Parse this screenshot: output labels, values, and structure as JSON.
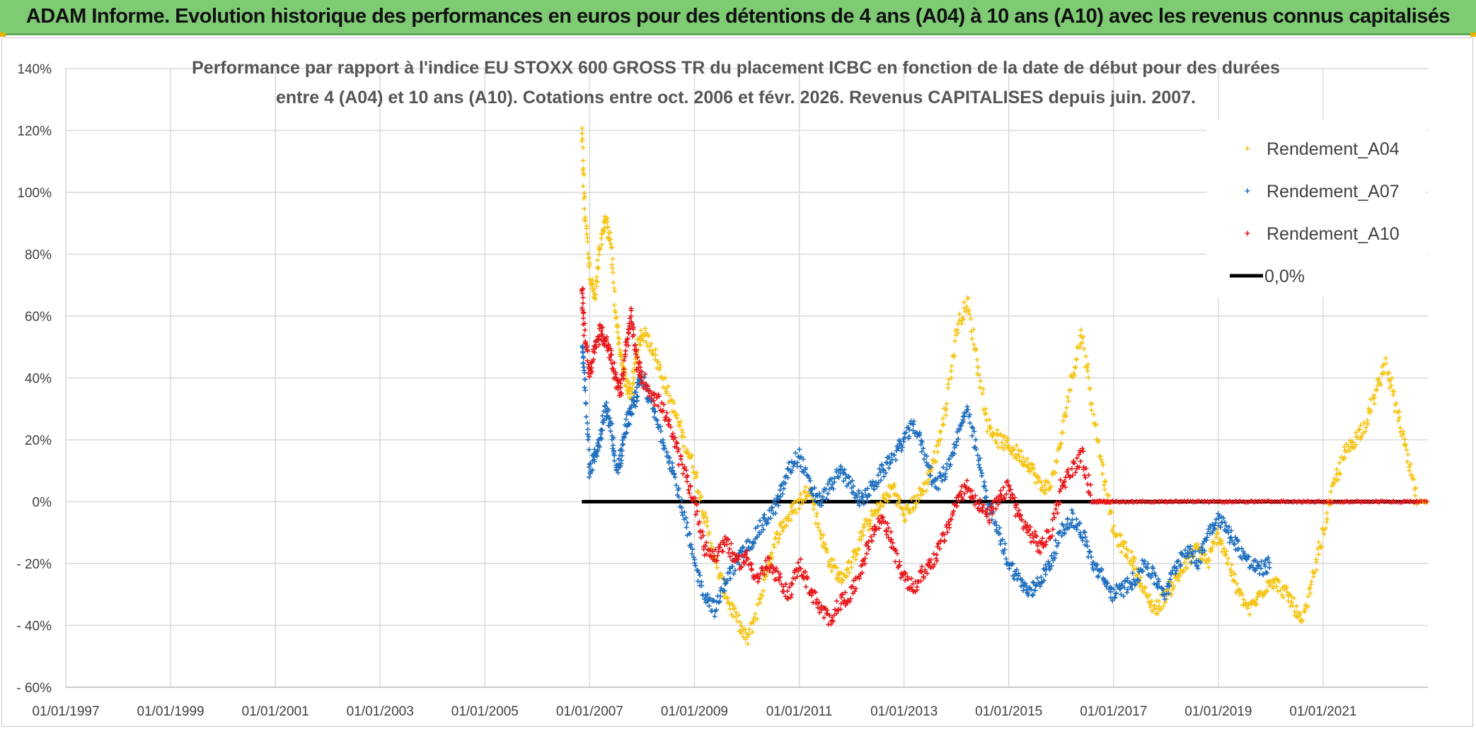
{
  "banner": {
    "title": "ADAM Informe. Evolution historique des performances en euros pour des détentions de 4 ans (A04) à 10 ans (A10) avec les revenus connus capitalisés"
  },
  "chart_data": {
    "type": "scatter",
    "title_line1": "Performance par rapport à l'indice EU STOXX 600 GROSS TR  du placement ICBC en fonction de la date de début pour des durées",
    "title_line2": "entre 4 (A04) et 10 ans (A10). Cotations entre oct. 2006 et févr. 2026. Revenus CAPITALISES depuis juin. 2007.",
    "xlabel": "",
    "ylabel": "",
    "x_range": [
      1997.0,
      2023.0
    ],
    "ylim": [
      -60,
      140
    ],
    "grid": true,
    "x_ticks": [
      {
        "label": "01/01/1997",
        "year": 1997
      },
      {
        "label": "01/01/1999",
        "year": 1999
      },
      {
        "label": "01/01/2001",
        "year": 2001
      },
      {
        "label": "01/01/2003",
        "year": 2003
      },
      {
        "label": "01/01/2005",
        "year": 2005
      },
      {
        "label": "01/01/2007",
        "year": 2007
      },
      {
        "label": "01/01/2009",
        "year": 2009
      },
      {
        "label": "01/01/2011",
        "year": 2011
      },
      {
        "label": "01/01/2013",
        "year": 2013
      },
      {
        "label": "01/01/2015",
        "year": 2015
      },
      {
        "label": "01/01/2017",
        "year": 2017
      },
      {
        "label": "01/01/2019",
        "year": 2019
      },
      {
        "label": "01/01/2021",
        "year": 2021
      }
    ],
    "y_ticks": [
      {
        "label": "140%",
        "value": 140
      },
      {
        "label": "120%",
        "value": 120
      },
      {
        "label": "100%",
        "value": 100
      },
      {
        "label": "80%",
        "value": 80
      },
      {
        "label": "60%",
        "value": 60
      },
      {
        "label": "40%",
        "value": 40
      },
      {
        "label": "20%",
        "value": 20
      },
      {
        "label": "0%",
        "value": 0
      },
      {
        "label": "- 20%",
        "value": -20
      },
      {
        "label": "- 40%",
        "value": -40
      },
      {
        "label": "- 60%",
        "value": -60
      }
    ],
    "legend_position": "top-right",
    "series": [
      {
        "name": "Rendement_A04",
        "color": "#f5c518",
        "marker": "plus",
        "x": [
          2006.85,
          2006.9,
          2007.0,
          2007.1,
          2007.2,
          2007.3,
          2007.4,
          2007.5,
          2007.6,
          2007.7,
          2007.8,
          2007.9,
          2008.0,
          2008.2,
          2008.4,
          2008.6,
          2008.8,
          2009.0,
          2009.2,
          2009.4,
          2009.6,
          2009.8,
          2010.0,
          2010.2,
          2010.4,
          2010.6,
          2010.8,
          2011.0,
          2011.2,
          2011.4,
          2011.6,
          2011.8,
          2012.0,
          2012.2,
          2012.4,
          2012.6,
          2012.8,
          2013.0,
          2013.2,
          2013.4,
          2013.6,
          2013.8,
          2014.0,
          2014.2,
          2014.4,
          2014.6,
          2014.8,
          2015.0,
          2015.2,
          2015.4,
          2015.6,
          2015.8,
          2016.0,
          2016.2,
          2016.4,
          2016.6,
          2016.8,
          2017.0,
          2017.2,
          2017.4,
          2017.6,
          2017.8,
          2018.0,
          2018.2,
          2018.4,
          2018.6,
          2018.8,
          2019.0,
          2019.2,
          2019.4,
          2019.6,
          2019.8,
          2020.0,
          2020.2,
          2020.4,
          2020.6,
          2020.8,
          2021.0,
          2021.2,
          2021.4,
          2021.6,
          2021.8,
          2022.0,
          2022.2,
          2022.4,
          2022.6,
          2022.8,
          2023.0
        ],
        "y": [
          120,
          95,
          75,
          65,
          82,
          92,
          85,
          60,
          45,
          38,
          35,
          48,
          55,
          50,
          40,
          30,
          20,
          10,
          -5,
          -20,
          -30,
          -38,
          -45,
          -35,
          -20,
          -10,
          -5,
          0,
          5,
          -10,
          -20,
          -25,
          -20,
          -10,
          -5,
          0,
          5,
          -5,
          0,
          5,
          15,
          30,
          55,
          65,
          45,
          25,
          20,
          18,
          15,
          12,
          5,
          5,
          20,
          40,
          55,
          30,
          10,
          -10,
          -15,
          -20,
          -30,
          -35,
          -30,
          -25,
          -20,
          -15,
          -20,
          -10,
          -20,
          -30,
          -35,
          -30,
          -25,
          -28,
          -32,
          -40,
          -25,
          -10,
          5,
          15,
          20,
          25,
          35,
          45,
          30,
          15,
          0,
          0
        ]
      },
      {
        "name": "Rendement_A07",
        "color": "#1f6fbf",
        "marker": "plus",
        "x": [
          2006.85,
          2006.9,
          2007.0,
          2007.1,
          2007.2,
          2007.3,
          2007.4,
          2007.5,
          2007.6,
          2007.7,
          2007.8,
          2007.9,
          2008.0,
          2008.2,
          2008.4,
          2008.6,
          2008.8,
          2009.0,
          2009.2,
          2009.4,
          2009.6,
          2009.8,
          2010.0,
          2010.2,
          2010.4,
          2010.6,
          2010.8,
          2011.0,
          2011.2,
          2011.4,
          2011.6,
          2011.8,
          2012.0,
          2012.2,
          2012.4,
          2012.6,
          2012.8,
          2013.0,
          2013.2,
          2013.4,
          2013.6,
          2013.8,
          2014.0,
          2014.2,
          2014.4,
          2014.6,
          2014.8,
          2015.0,
          2015.2,
          2015.4,
          2015.6,
          2015.8,
          2016.0,
          2016.2,
          2016.4,
          2016.6,
          2016.8,
          2017.0,
          2017.2,
          2017.4,
          2017.6,
          2017.8,
          2018.0,
          2018.2,
          2018.4,
          2018.6,
          2018.8,
          2019.0,
          2019.2,
          2019.4,
          2019.6,
          2019.8,
          2020.0
        ],
        "y": [
          50,
          40,
          10,
          15,
          20,
          30,
          25,
          10,
          15,
          25,
          30,
          35,
          40,
          30,
          20,
          10,
          -5,
          -20,
          -30,
          -35,
          -25,
          -20,
          -15,
          -10,
          -5,
          0,
          10,
          15,
          5,
          0,
          5,
          10,
          5,
          0,
          5,
          10,
          15,
          20,
          25,
          15,
          5,
          10,
          20,
          30,
          15,
          0,
          -10,
          -20,
          -25,
          -30,
          -25,
          -20,
          -10,
          -5,
          -10,
          -20,
          -25,
          -30,
          -28,
          -25,
          -20,
          -25,
          -30,
          -20,
          -15,
          -20,
          -10,
          -5,
          -10,
          -15,
          -20,
          -22,
          -20
        ]
      },
      {
        "name": "Rendement_A10",
        "color": "#e8191c",
        "marker": "plus",
        "x": [
          2006.85,
          2006.9,
          2007.0,
          2007.1,
          2007.2,
          2007.3,
          2007.4,
          2007.5,
          2007.6,
          2007.7,
          2007.8,
          2007.9,
          2008.0,
          2008.2,
          2008.4,
          2008.6,
          2008.8,
          2009.0,
          2009.2,
          2009.4,
          2009.6,
          2009.8,
          2010.0,
          2010.2,
          2010.4,
          2010.6,
          2010.8,
          2011.0,
          2011.2,
          2011.4,
          2011.6,
          2011.8,
          2012.0,
          2012.2,
          2012.4,
          2012.6,
          2012.8,
          2013.0,
          2013.2,
          2013.4,
          2013.6,
          2013.8,
          2014.0,
          2014.2,
          2014.4,
          2014.6,
          2014.8,
          2015.0,
          2015.2,
          2015.4,
          2015.6,
          2015.8,
          2016.0,
          2016.2,
          2016.4,
          2016.6,
          2016.8,
          2017.0,
          2017.5,
          2018.0,
          2018.5,
          2019.0,
          2019.5,
          2020.0,
          2020.5,
          2021.0,
          2021.5,
          2022.0,
          2022.5,
          2023.0
        ],
        "y": [
          70,
          55,
          40,
          50,
          55,
          52,
          48,
          40,
          35,
          50,
          60,
          45,
          40,
          35,
          30,
          20,
          10,
          0,
          -15,
          -18,
          -12,
          -20,
          -18,
          -25,
          -20,
          -25,
          -30,
          -20,
          -28,
          -35,
          -38,
          -32,
          -30,
          -20,
          -10,
          -5,
          -15,
          -25,
          -28,
          -22,
          -18,
          -10,
          0,
          5,
          0,
          -5,
          0,
          5,
          -5,
          -10,
          -15,
          -10,
          5,
          10,
          15,
          0,
          0,
          0,
          0,
          0,
          0,
          0,
          0,
          0,
          0,
          0,
          0,
          0,
          0,
          0
        ]
      },
      {
        "name": "0,0%",
        "color": "#000000",
        "marker": "line",
        "x": [
          2006.85,
          2023.0
        ],
        "y": [
          0,
          0
        ]
      }
    ]
  }
}
